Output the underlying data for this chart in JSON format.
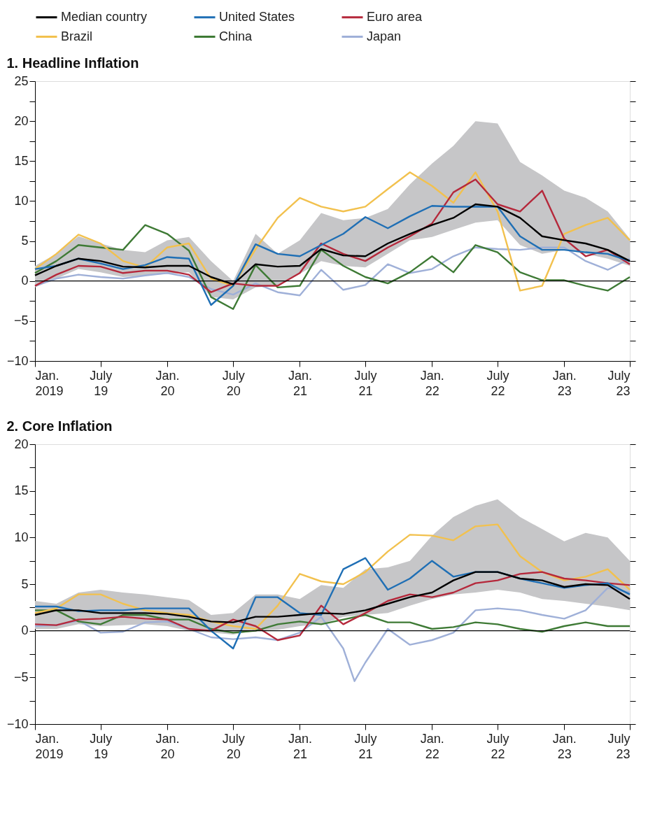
{
  "chart_data": [
    {
      "type": "line",
      "title": "1. Headline Inflation",
      "x": [
        "2019-01",
        "2019-03",
        "2019-05",
        "2019-07",
        "2019-09",
        "2019-11",
        "2020-01",
        "2020-03",
        "2020-05",
        "2020-07",
        "2020-09",
        "2020-11",
        "2021-01",
        "2021-03",
        "2021-05",
        "2021-07",
        "2021-09",
        "2021-11",
        "2022-01",
        "2022-03",
        "2022-05",
        "2022-07",
        "2022-09",
        "2022-11",
        "2023-01",
        "2023-03",
        "2023-05",
        "2023-07"
      ],
      "xlim": [
        "2019-01",
        "2023-07"
      ],
      "xticks": [
        {
          "value": "2019-01",
          "label": "Jan.\n2019"
        },
        {
          "value": "2019-07",
          "label": "July\n19"
        },
        {
          "value": "2020-01",
          "label": "Jan.\n20"
        },
        {
          "value": "2020-07",
          "label": "July\n20"
        },
        {
          "value": "2021-01",
          "label": "Jan.\n21"
        },
        {
          "value": "2021-07",
          "label": "July\n21"
        },
        {
          "value": "2022-01",
          "label": "Jan.\n22"
        },
        {
          "value": "2022-07",
          "label": "July\n22"
        },
        {
          "value": "2023-01",
          "label": "Jan.\n23"
        },
        {
          "value": "2023-07",
          "label": "July\n23"
        }
      ],
      "ylim": [
        -10,
        25
      ],
      "yticks": [
        -10,
        {
          "value": -7.5,
          "label": null
        },
        -5,
        {
          "value": -2.5,
          "label": null
        },
        0,
        {
          "value": 2.5,
          "label": null
        },
        5,
        {
          "value": 7.5,
          "label": null
        },
        10,
        {
          "value": 12.5,
          "label": null
        },
        15,
        {
          "value": 17.5,
          "label": null
        },
        20,
        {
          "value": 22.5,
          "label": null
        },
        25
      ],
      "ref_lines": [
        {
          "axis": "y",
          "value": 0,
          "color": "#000000"
        }
      ],
      "legend": "top",
      "grid": false,
      "series": [
        {
          "name": "Median country",
          "color": "#000000",
          "values": [
            0.7,
            1.9,
            2.8,
            2.5,
            1.8,
            1.7,
            1.9,
            1.9,
            0.5,
            -0.4,
            2.1,
            1.8,
            1.9,
            4.0,
            3.2,
            3.1,
            4.7,
            5.9,
            7.0,
            7.9,
            9.6,
            9.3,
            7.9,
            5.6,
            5.1,
            4.7,
            3.9,
            2.5
          ],
          "lower": [
            -0.8,
            0.3,
            1.5,
            1.1,
            0.5,
            0.7,
            0.9,
            1.1,
            -2.0,
            -2.3,
            -0.8,
            -0.6,
            0.9,
            2.5,
            1.9,
            1.7,
            3.4,
            5.1,
            5.5,
            6.4,
            7.3,
            7.6,
            4.5,
            3.4,
            3.9,
            3.4,
            2.8,
            1.9
          ],
          "upper": [
            1.9,
            3.4,
            5.6,
            4.7,
            3.9,
            3.6,
            5.1,
            5.5,
            2.5,
            0,
            5.9,
            3.4,
            5.1,
            8.5,
            7.6,
            7.9,
            9.0,
            12.1,
            14.7,
            16.9,
            20.0,
            19.7,
            14.9,
            13.2,
            11.3,
            10.4,
            8.7,
            5.3
          ]
        },
        {
          "name": "United States",
          "color": "#1f6fb5",
          "values": [
            1.5,
            1.9,
            2.8,
            2.2,
            1.5,
            2.0,
            3.0,
            2.8,
            -3.0,
            -0.6,
            4.6,
            3.4,
            3.1,
            4.5,
            5.9,
            8.0,
            6.6,
            8.1,
            9.4,
            9.3,
            9.3,
            9.3,
            5.6,
            3.9,
            3.9,
            3.6,
            3.4,
            2.5
          ]
        },
        {
          "name": "Euro area",
          "color": "#b5283b",
          "values": [
            -0.6,
            0.8,
            1.9,
            1.8,
            1.0,
            1.3,
            1.3,
            0.8,
            -1.4,
            -0.3,
            -0.6,
            -0.6,
            1.0,
            4.7,
            3.4,
            2.5,
            4.2,
            5.6,
            7.2,
            11.1,
            12.7,
            9.6,
            8.7,
            11.3,
            5.3,
            3.1,
            3.9,
            2.1
          ]
        },
        {
          "name": "Brazil",
          "color": "#f2c14e",
          "values": [
            1.5,
            3.4,
            5.8,
            4.7,
            2.5,
            1.7,
            4.2,
            4.7,
            0.3,
            -0.6,
            4.0,
            7.9,
            10.4,
            9.3,
            8.7,
            9.3,
            11.5,
            13.6,
            11.9,
            9.8,
            13.6,
            8.7,
            -1.2,
            -0.6,
            5.9,
            7.0,
            7.9,
            5.1
          ]
        },
        {
          "name": "China",
          "color": "#3e7a35",
          "values": [
            1.0,
            2.5,
            4.5,
            4.2,
            3.9,
            7.0,
            5.9,
            3.8,
            -2.0,
            -3.5,
            2.0,
            -0.8,
            -0.6,
            3.9,
            1.9,
            0.5,
            -0.3,
            1.1,
            3.1,
            1.1,
            4.5,
            3.6,
            1.1,
            0.1,
            0.1,
            -0.6,
            -1.2,
            0.5
          ]
        },
        {
          "name": "Japan",
          "color": "#9fb0d8",
          "values": [
            -0.6,
            0.3,
            0.8,
            0.5,
            0.3,
            0.7,
            1.0,
            0.5,
            -1.0,
            -1.7,
            -0.3,
            -1.4,
            -1.8,
            1.4,
            -1.1,
            -0.5,
            2.1,
            1.0,
            1.5,
            3.1,
            4.2,
            4.0,
            3.9,
            4.2,
            4.2,
            2.5,
            1.4,
            2.8
          ]
        }
      ]
    },
    {
      "type": "line",
      "title": "2. Core Inflation",
      "x": [
        "2019-01",
        "2019-03",
        "2019-05",
        "2019-07",
        "2019-09",
        "2019-11",
        "2020-01",
        "2020-03",
        "2020-05",
        "2020-07",
        "2020-09",
        "2020-11",
        "2021-01",
        "2021-03",
        "2021-05",
        "2021-07",
        "2021-09",
        "2021-11",
        "2022-01",
        "2022-03",
        "2022-05",
        "2022-07",
        "2022-09",
        "2022-11",
        "2023-01",
        "2023-03",
        "2023-05",
        "2023-07"
      ],
      "xlim": [
        "2019-01",
        "2023-07"
      ],
      "xticks": [
        {
          "value": "2019-01",
          "label": "Jan.\n2019"
        },
        {
          "value": "2019-07",
          "label": "July\n19"
        },
        {
          "value": "2020-01",
          "label": "Jan.\n20"
        },
        {
          "value": "2020-07",
          "label": "July\n20"
        },
        {
          "value": "2021-01",
          "label": "Jan.\n21"
        },
        {
          "value": "2021-07",
          "label": "July\n21"
        },
        {
          "value": "2022-01",
          "label": "Jan.\n22"
        },
        {
          "value": "2022-07",
          "label": "July\n22"
        },
        {
          "value": "2023-01",
          "label": "Jan.\n23"
        },
        {
          "value": "2023-07",
          "label": "July\n23"
        }
      ],
      "ylim": [
        -10,
        20
      ],
      "yticks": [
        -10,
        {
          "value": -7.5,
          "label": null
        },
        -5,
        {
          "value": -2.5,
          "label": null
        },
        0,
        {
          "value": 2.5,
          "label": null
        },
        5,
        {
          "value": 7.5,
          "label": null
        },
        10,
        {
          "value": 12.5,
          "label": null
        },
        15,
        {
          "value": 17.5,
          "label": null
        },
        20
      ],
      "ref_lines": [
        {
          "axis": "y",
          "value": 0,
          "color": "#000000"
        }
      ],
      "legend": "top",
      "grid": false,
      "series": [
        {
          "name": "Median country",
          "color": "#000000",
          "values": [
            1.7,
            2.2,
            2.2,
            1.9,
            1.9,
            1.9,
            1.8,
            1.5,
            1.0,
            0.9,
            1.5,
            1.5,
            1.7,
            1.9,
            1.8,
            2.2,
            2.9,
            3.6,
            4.1,
            5.4,
            6.3,
            6.3,
            5.6,
            5.4,
            4.7,
            5.0,
            4.9,
            3.4
          ],
          "lower": [
            0.2,
            0.2,
            0.7,
            0.5,
            0.6,
            0.7,
            0.5,
            0,
            -0.2,
            -0.4,
            0,
            0.1,
            0.5,
            0.7,
            1.5,
            1.7,
            1.9,
            2.7,
            3.4,
            3.9,
            4.1,
            4.4,
            4.1,
            3.4,
            3.2,
            2.9,
            2.6,
            2.2
          ],
          "upper": [
            3.2,
            2.9,
            4.1,
            4.4,
            4.1,
            3.9,
            3.6,
            3.3,
            1.7,
            1.9,
            3.9,
            3.9,
            3.4,
            4.9,
            4.6,
            6.6,
            6.8,
            7.5,
            10.2,
            12.2,
            13.4,
            14.1,
            12.2,
            10.9,
            9.6,
            10.5,
            10.0,
            7.5
          ]
        },
        {
          "name": "United States",
          "color": "#1f6fb5",
          "values": [
            2.6,
            2.6,
            2.1,
            2.2,
            2.2,
            2.4,
            2.4,
            2.4,
            0,
            -1.9,
            3.6,
            3.6,
            1.9,
            1.7,
            6.6,
            7.8,
            4.4,
            5.6,
            7.5,
            5.8,
            6.3,
            6.3,
            5.6,
            5.1,
            4.6,
            4.9,
            5.1,
            3.9
          ]
        },
        {
          "name": "Euro area",
          "color": "#b5283b",
          "values": [
            0.7,
            0.6,
            1.2,
            1.3,
            1.5,
            1.3,
            1.2,
            0.2,
            0,
            1.2,
            0.5,
            -1.0,
            -0.5,
            2.7,
            0.7,
            1.9,
            3.2,
            3.9,
            3.6,
            4.1,
            5.1,
            5.4,
            6.1,
            6.3,
            5.6,
            5.4,
            5.1,
            4.9
          ]
        },
        {
          "name": "Brazil",
          "color": "#f2c14e",
          "values": [
            1.9,
            2.4,
            3.9,
            3.9,
            2.9,
            2.2,
            1.9,
            1.7,
            1.0,
            0.5,
            0.2,
            2.7,
            6.1,
            5.3,
            5.0,
            6.3,
            8.5,
            10.3,
            10.2,
            9.7,
            11.2,
            11.4,
            8.0,
            6.3,
            5.4,
            5.8,
            6.6,
            4.4
          ]
        },
        {
          "name": "China",
          "color": "#3e7a35",
          "values": [
            2.2,
            2.2,
            1.0,
            0.7,
            1.7,
            1.7,
            1.2,
            1.2,
            0.2,
            -0.2,
            0,
            0.7,
            1.0,
            0.7,
            1.2,
            1.7,
            0.9,
            0.9,
            0.2,
            0.4,
            0.9,
            0.7,
            0.2,
            -0.1,
            0.5,
            0.9,
            0.5,
            0.5
          ]
        },
        {
          "name": "Japan",
          "color": "#9fb0d8",
          "x": [
            "2019-01",
            "2019-03",
            "2019-05",
            "2019-07",
            "2019-09",
            "2019-11",
            "2020-01",
            "2020-03",
            "2020-05",
            "2020-07",
            "2020-09",
            "2020-11",
            "2021-01",
            "2021-03",
            "2021-05",
            "2021-06",
            "2021-07",
            "2021-09",
            "2021-11",
            "2022-01",
            "2022-03",
            "2022-05",
            "2022-07",
            "2022-09",
            "2022-11",
            "2023-01",
            "2023-03",
            "2023-05",
            "2023-07"
          ],
          "values": [
            0.5,
            0.6,
            1.1,
            -0.2,
            -0.1,
            0.9,
            1.0,
            0.2,
            -0.7,
            -0.9,
            -0.7,
            -1.0,
            -0.2,
            1.5,
            -1.9,
            -5.4,
            -3.4,
            0.2,
            -1.5,
            -1.0,
            -0.2,
            2.2,
            2.4,
            2.2,
            1.7,
            1.3,
            2.2,
            4.6,
            4.1
          ]
        }
      ]
    }
  ]
}
